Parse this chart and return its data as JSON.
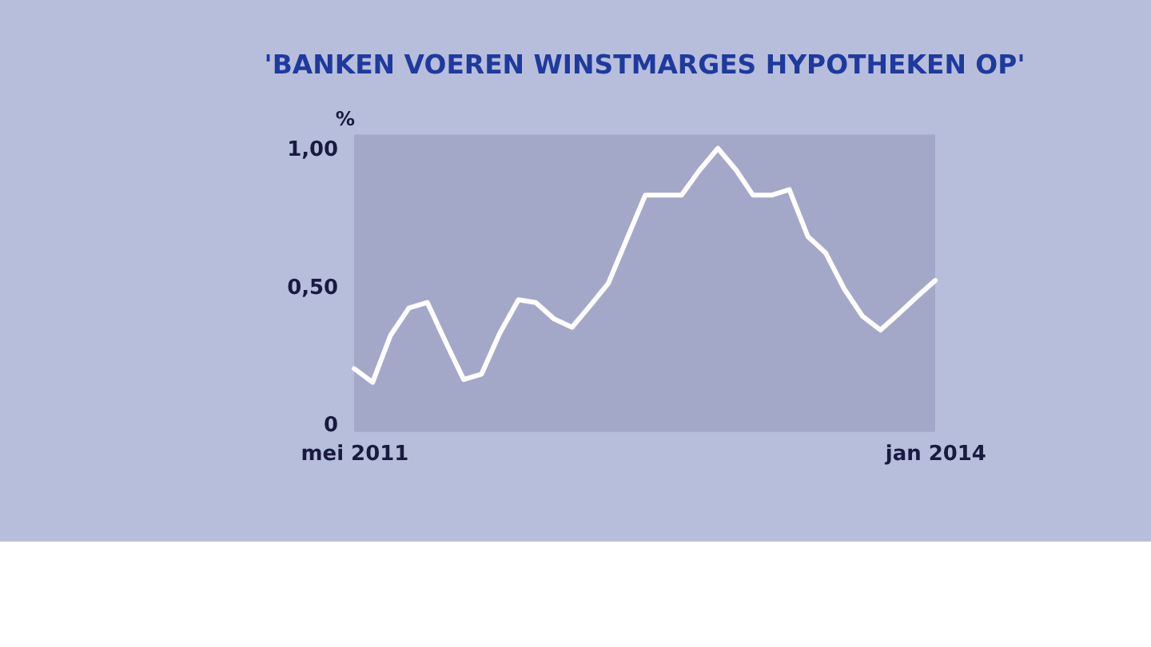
{
  "chart_data": {
    "type": "line",
    "title": "'BANKEN VOEREN WINSTMARGES HYPOTHEKEN OP'",
    "ylabel": "%",
    "x": [
      "2011-05",
      "2011-06",
      "2011-07",
      "2011-08",
      "2011-09",
      "2011-10",
      "2011-11",
      "2011-12",
      "2012-01",
      "2012-02",
      "2012-03",
      "2012-04",
      "2012-05",
      "2012-06",
      "2012-07",
      "2012-08",
      "2012-09",
      "2012-10",
      "2012-11",
      "2012-12",
      "2013-01",
      "2013-02",
      "2013-03",
      "2013-04",
      "2013-05",
      "2013-06",
      "2013-07",
      "2013-08",
      "2013-09",
      "2013-10",
      "2013-11",
      "2013-12",
      "2014-01"
    ],
    "series": [
      {
        "color": "#ffffff",
        "values": [
          0.2,
          0.15,
          0.32,
          0.42,
          0.44,
          0.3,
          0.16,
          0.18,
          0.33,
          0.45,
          0.44,
          0.38,
          0.35,
          0.43,
          0.51,
          0.67,
          0.83,
          0.83,
          0.83,
          0.92,
          1.0,
          0.92,
          0.83,
          0.83,
          0.85,
          0.68,
          0.62,
          0.49,
          0.39,
          0.34,
          0.4,
          0.46,
          0.52
        ]
      }
    ],
    "xlim": [
      "2011-05",
      "2014-01"
    ],
    "xticks": [
      {
        "value": "2011-05",
        "label": "mei 2011"
      },
      {
        "value": "2014-01",
        "label": "jan 2014"
      }
    ],
    "ylim": [
      -0.03,
      1.05
    ],
    "yticks": [
      {
        "value": 0,
        "label": "0"
      },
      {
        "value": 0.5,
        "label": "0,50"
      },
      {
        "value": 1.0,
        "label": "1,00"
      }
    ],
    "grid": false,
    "marker": "none",
    "line_style": "solid"
  }
}
